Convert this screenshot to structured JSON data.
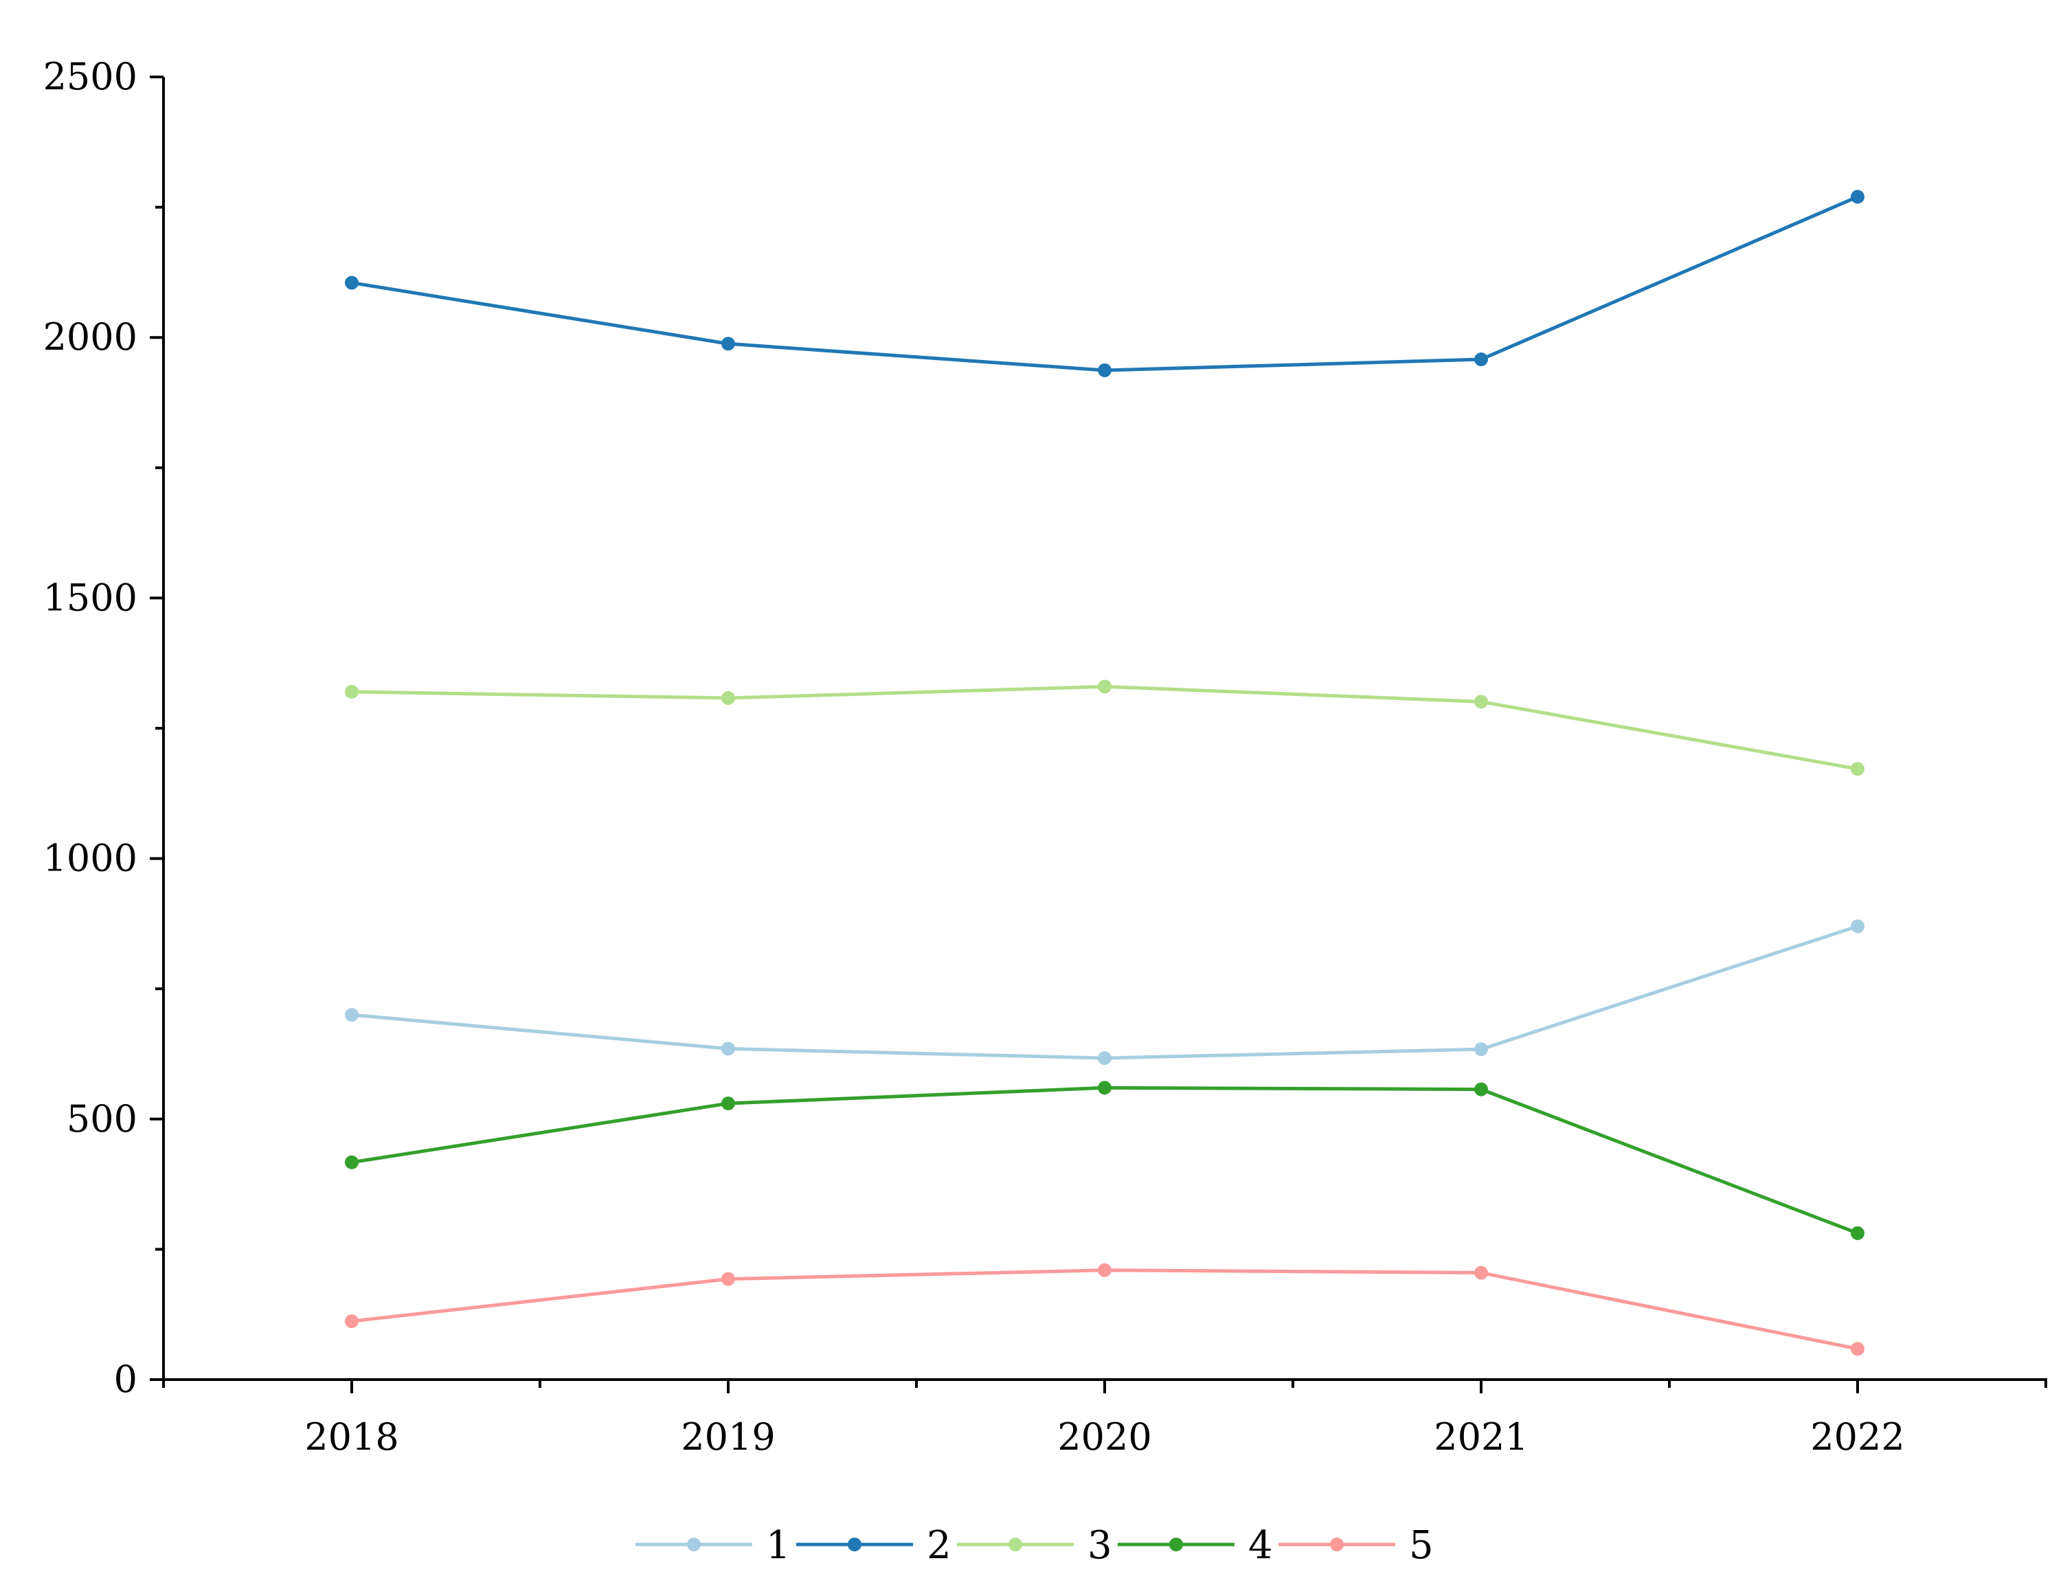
{
  "chart_data": {
    "type": "line",
    "title": "",
    "xlabel": "",
    "ylabel": "",
    "x": [
      "2018",
      "2019",
      "2020",
      "2021",
      "2022"
    ],
    "ylim": [
      0,
      2500
    ],
    "yticks": [
      "0",
      "500",
      "1000",
      "1500",
      "2000",
      "2500"
    ],
    "grid": false,
    "legend_position": "bottom-center",
    "series": [
      {
        "name": "1",
        "color": "#a6cee3",
        "values": [
          700,
          635,
          617,
          634,
          870
        ]
      },
      {
        "name": "2",
        "color": "#1f78b4",
        "values": [
          2105,
          1988,
          1937,
          1958,
          2270
        ]
      },
      {
        "name": "3",
        "color": "#b2df8a",
        "values": [
          1320,
          1308,
          1330,
          1301,
          1172
        ]
      },
      {
        "name": "4",
        "color": "#33a02c",
        "values": [
          417,
          530,
          560,
          557,
          281
        ]
      },
      {
        "name": "5",
        "color": "#fb9a99",
        "values": [
          112,
          193,
          210,
          205,
          59
        ]
      }
    ]
  }
}
